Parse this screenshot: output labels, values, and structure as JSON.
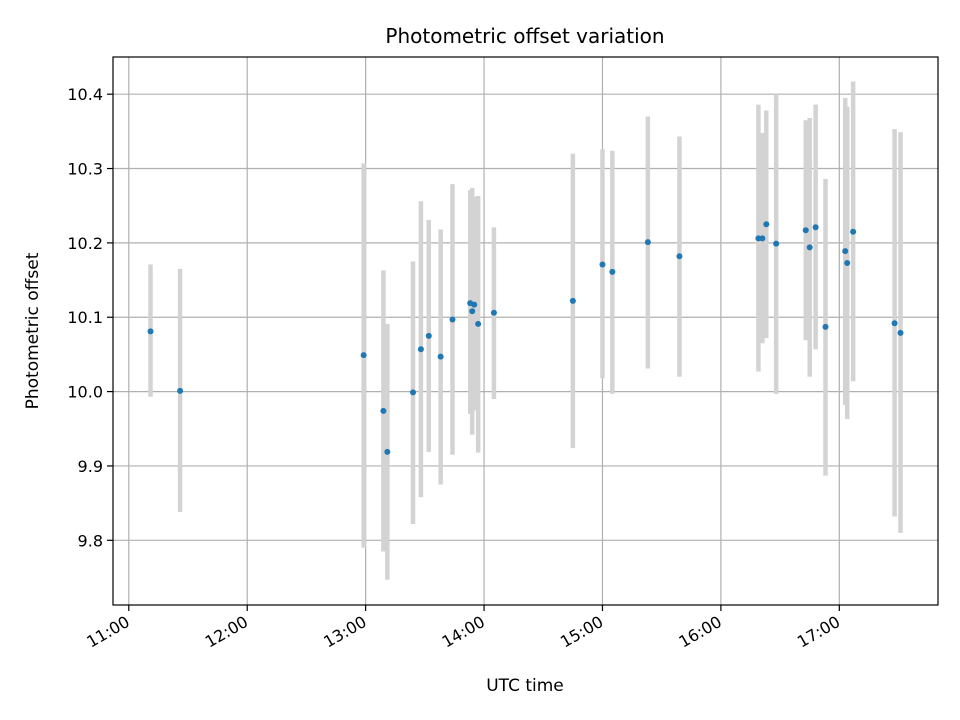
{
  "chart_data": {
    "type": "scatter",
    "title": "Photometric offset variation",
    "xlabel": "UTC time",
    "ylabel": "Photometric offset",
    "x_ticks": [
      "11:00",
      "12:00",
      "13:00",
      "14:00",
      "15:00",
      "16:00",
      "17:00"
    ],
    "y_ticks": [
      "9.8",
      "9.9",
      "10.0",
      "10.1",
      "10.2",
      "10.3",
      "10.4"
    ],
    "xlim": [
      "10:52",
      "17:50"
    ],
    "ylim": [
      9.713,
      10.45
    ],
    "grid": true,
    "point_color": "#1f77b4",
    "errorbar_color": "#d3d3d3",
    "points": [
      {
        "x": "11:11",
        "y": 10.081,
        "ylow": 9.993,
        "yhigh": 10.171
      },
      {
        "x": "11:26",
        "y": 10.001,
        "ylow": 9.838,
        "yhigh": 10.165
      },
      {
        "x": "12:59",
        "y": 10.049,
        "ylow": 9.79,
        "yhigh": 10.307
      },
      {
        "x": "13:09",
        "y": 9.974,
        "ylow": 9.785,
        "yhigh": 10.163
      },
      {
        "x": "13:11",
        "y": 9.919,
        "ylow": 9.747,
        "yhigh": 10.091
      },
      {
        "x": "13:24",
        "y": 9.999,
        "ylow": 9.822,
        "yhigh": 10.175
      },
      {
        "x": "13:28",
        "y": 10.057,
        "ylow": 9.858,
        "yhigh": 10.256
      },
      {
        "x": "13:32",
        "y": 10.075,
        "ylow": 9.919,
        "yhigh": 10.231
      },
      {
        "x": "13:38",
        "y": 10.047,
        "ylow": 9.875,
        "yhigh": 10.218
      },
      {
        "x": "13:44",
        "y": 10.097,
        "ylow": 9.915,
        "yhigh": 10.279
      },
      {
        "x": "13:53",
        "y": 10.119,
        "ylow": 9.97,
        "yhigh": 10.271
      },
      {
        "x": "13:54",
        "y": 10.108,
        "ylow": 9.942,
        "yhigh": 10.274
      },
      {
        "x": "13:55",
        "y": 10.117,
        "ylow": 9.975,
        "yhigh": 10.262
      },
      {
        "x": "13:57",
        "y": 10.091,
        "ylow": 9.918,
        "yhigh": 10.263
      },
      {
        "x": "14:05",
        "y": 10.106,
        "ylow": 9.99,
        "yhigh": 10.221
      },
      {
        "x": "14:45",
        "y": 10.122,
        "ylow": 9.924,
        "yhigh": 10.32
      },
      {
        "x": "15:00",
        "y": 10.171,
        "ylow": 10.018,
        "yhigh": 10.326
      },
      {
        "x": "15:05",
        "y": 10.161,
        "ylow": 9.997,
        "yhigh": 10.324
      },
      {
        "x": "15:23",
        "y": 10.201,
        "ylow": 10.031,
        "yhigh": 10.37
      },
      {
        "x": "15:39",
        "y": 10.182,
        "ylow": 10.02,
        "yhigh": 10.343
      },
      {
        "x": "16:19",
        "y": 10.206,
        "ylow": 10.027,
        "yhigh": 10.386
      },
      {
        "x": "16:21",
        "y": 10.206,
        "ylow": 10.065,
        "yhigh": 10.348
      },
      {
        "x": "16:23",
        "y": 10.225,
        "ylow": 10.072,
        "yhigh": 10.378
      },
      {
        "x": "16:28",
        "y": 10.199,
        "ylow": 9.997,
        "yhigh": 10.4
      },
      {
        "x": "16:43",
        "y": 10.217,
        "ylow": 10.069,
        "yhigh": 10.365
      },
      {
        "x": "16:45",
        "y": 10.194,
        "ylow": 10.02,
        "yhigh": 10.368
      },
      {
        "x": "16:48",
        "y": 10.221,
        "ylow": 10.057,
        "yhigh": 10.386
      },
      {
        "x": "16:53",
        "y": 10.087,
        "ylow": 9.887,
        "yhigh": 10.286
      },
      {
        "x": "17:03",
        "y": 10.189,
        "ylow": 9.982,
        "yhigh": 10.395
      },
      {
        "x": "17:04",
        "y": 10.173,
        "ylow": 9.963,
        "yhigh": 10.383
      },
      {
        "x": "17:07",
        "y": 10.215,
        "ylow": 10.014,
        "yhigh": 10.417
      },
      {
        "x": "17:28",
        "y": 10.092,
        "ylow": 9.832,
        "yhigh": 10.353
      },
      {
        "x": "17:31",
        "y": 10.079,
        "ylow": 9.81,
        "yhigh": 10.349
      }
    ]
  }
}
